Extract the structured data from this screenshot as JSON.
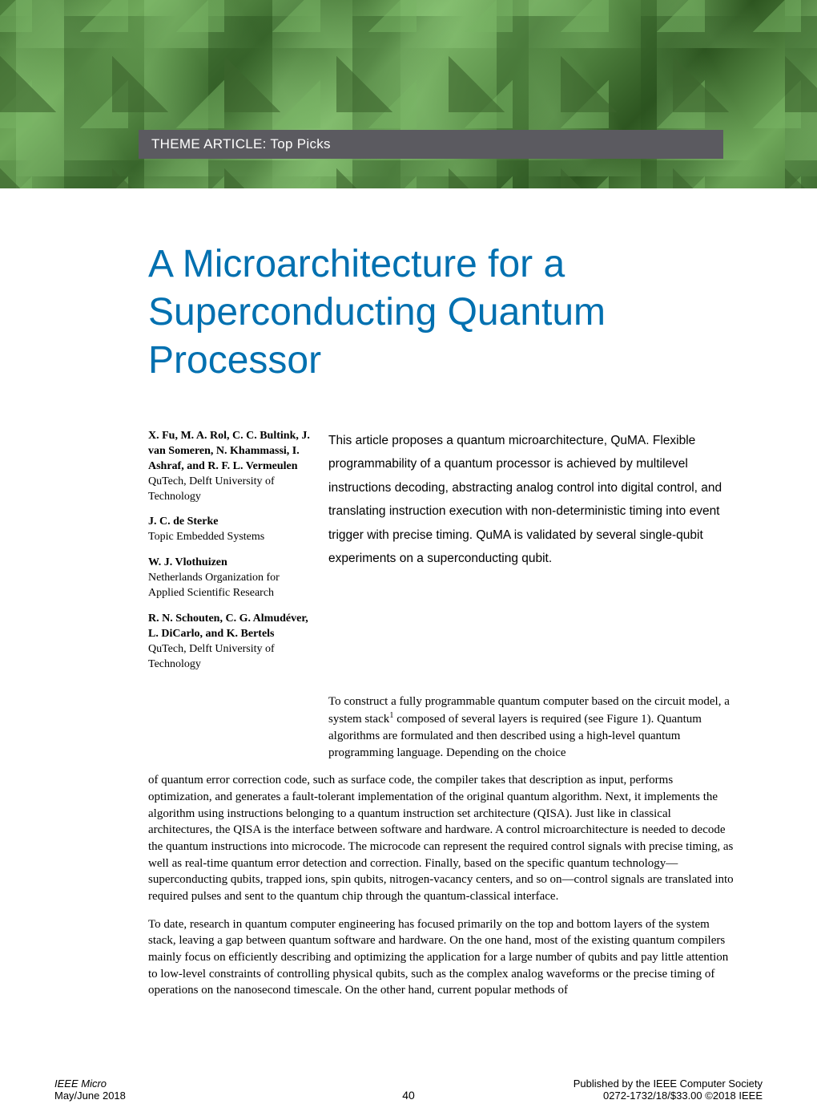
{
  "banner": {
    "theme_label": "THEME ARTICLE: Top Picks",
    "bg_colors": [
      "#4a7a3a",
      "#6fa85a",
      "#3d6b2f",
      "#7fb86a",
      "#5a8f48",
      "#2d5520"
    ]
  },
  "title": "A Microarchitecture for a Superconducting Quantum Processor",
  "title_color": "#0070b0",
  "title_fontsize": 48,
  "authors": [
    {
      "names": "X. Fu, M. A. Rol, C. C. Bultink, J. van Someren, N. Khammassi, I. Ashraf, and R. F. L. Vermeulen",
      "affiliation": "QuTech, Delft University of Technology"
    },
    {
      "names": "J. C. de Sterke",
      "affiliation": "Topic Embedded Systems"
    },
    {
      "names": "W. J. Vlothuizen",
      "affiliation": "Netherlands Organization for Applied Scientific Research"
    },
    {
      "names": "R. N. Schouten, C. G. Almudéver, L. DiCarlo, and K. Bertels",
      "affiliation": "QuTech, Delft University of Technology"
    }
  ],
  "abstract": "This article proposes a quantum microarchitecture, QuMA. Flexible programmability of a quantum processor is achieved by multilevel instructions decoding, abstracting analog control into digital control, and translating instruction execution with non-deterministic timing into event trigger with precise timing. QuMA is validated by several single-qubit experiments on a superconducting qubit.",
  "intro_para_lead": "To construct a fully programmable quantum computer based on the circuit model, a system stack",
  "intro_para_sup": "1",
  "intro_para_tail": " composed of several layers is required (see Figure 1). Quantum algorithms are formulated and then described using a high-level quantum programming language. Depending on the choice",
  "body_p1": "of quantum error correction code, such as surface code, the compiler takes that description as input, performs optimization, and generates a fault-tolerant implementation of the original quantum algorithm. Next, it implements the algorithm using instructions belonging to a quantum instruction set architecture (QISA). Just like in classical architectures, the QISA is the interface between software and hardware. A control microarchitecture is needed to decode the quantum instructions into microcode. The microcode can represent the required control signals with precise timing, as well as real-time quantum error detection and correction. Finally, based on the specific quantum technology—superconducting qubits, trapped ions, spin qubits, nitrogen-vacancy centers, and so on—control signals are translated into required pulses and sent to the quantum chip through the quantum-classical interface.",
  "body_p2": "To date, research in quantum computer engineering has focused primarily on the top and bottom layers of the system stack, leaving a gap between quantum software and hardware. On the one hand, most of the existing quantum compilers mainly focus on efficiently describing and optimizing the application for a large number of qubits and pay little attention to low-level constraints of controlling physical qubits, such as the complex analog waveforms or the precise timing of operations on the nanosecond timescale. On the other hand, current popular methods of",
  "footer": {
    "journal": "IEEE Micro",
    "issue": "May/June 2018",
    "page_number": "40",
    "published": "Published by the IEEE Computer Society",
    "isbn": "0272-1732/18/$33.00 ©2018 IEEE"
  }
}
